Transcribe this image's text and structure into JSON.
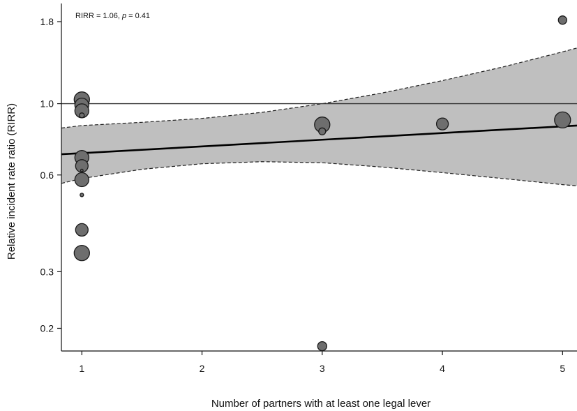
{
  "chart_data": {
    "type": "scatter",
    "title": "",
    "xlabel": "Number of partners with at least one legal lever",
    "ylabel": "Relative incident rate ratio (RIRR)",
    "annotation": {
      "lead": "RIRR = 1.06, ",
      "p_symbol": "p",
      "tail": " = 0.41"
    },
    "x_ticks": [
      "1",
      "2",
      "3",
      "4",
      "5"
    ],
    "y_ticks": [
      "0.2",
      "0.3",
      "0.6",
      "1.0",
      "1.8"
    ],
    "y_tick_values": [
      0.2,
      0.3,
      0.6,
      1.0,
      1.8
    ],
    "y_scale": "log",
    "xlim": [
      0.83,
      5.12
    ],
    "ylim": [
      0.17,
      2.05
    ],
    "reference_line_y": 1.0,
    "fit_line": {
      "x": [
        0.83,
        5.12
      ],
      "y": [
        0.696,
        0.855
      ]
    },
    "confidence_band": {
      "x": [
        0.83,
        1.0,
        1.5,
        2.0,
        2.5,
        3.0,
        3.5,
        4.0,
        4.5,
        5.0,
        5.12
      ],
      "upper": [
        0.84,
        0.855,
        0.875,
        0.9,
        0.94,
        1.0,
        1.08,
        1.18,
        1.3,
        1.45,
        1.49
      ],
      "lower": [
        0.565,
        0.585,
        0.625,
        0.65,
        0.66,
        0.655,
        0.635,
        0.61,
        0.585,
        0.56,
        0.555
      ]
    },
    "series": [
      {
        "points": [
          {
            "x": 1,
            "y": 1.03,
            "size": 11
          },
          {
            "x": 1,
            "y": 0.99,
            "size": 10
          },
          {
            "x": 1,
            "y": 0.95,
            "size": 10
          },
          {
            "x": 1,
            "y": 0.92,
            "size": 3.5
          },
          {
            "x": 1,
            "y": 0.68,
            "size": 10
          },
          {
            "x": 1,
            "y": 0.64,
            "size": 9
          },
          {
            "x": 1,
            "y": 0.62,
            "size": 1.8
          },
          {
            "x": 1,
            "y": 0.58,
            "size": 10
          },
          {
            "x": 1,
            "y": 0.52,
            "size": 2.5
          },
          {
            "x": 1,
            "y": 0.405,
            "size": 9
          },
          {
            "x": 1,
            "y": 0.343,
            "size": 11
          },
          {
            "x": 3,
            "y": 0.86,
            "size": 11
          },
          {
            "x": 3,
            "y": 0.82,
            "size": 5
          },
          {
            "x": 3,
            "y": 0.176,
            "size": 6.5
          },
          {
            "x": 4,
            "y": 0.865,
            "size": 8.5
          },
          {
            "x": 5,
            "y": 0.89,
            "size": 11.5
          },
          {
            "x": 5,
            "y": 1.82,
            "size": 6
          }
        ]
      }
    ],
    "colors": {
      "band_fill": "#bfbfbf",
      "point_fill": "#6e6e6e",
      "point_stroke": "#1a1a1a",
      "line": "#000000"
    },
    "grid": false,
    "legend": "none"
  }
}
